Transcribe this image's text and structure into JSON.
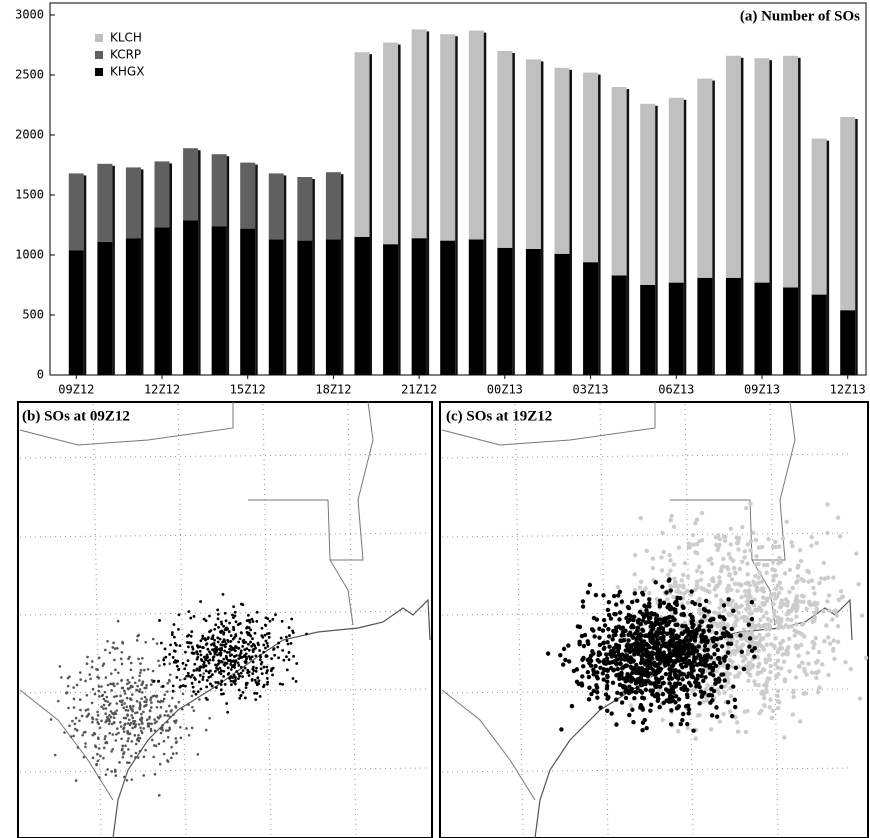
{
  "chart_data": {
    "type": "bar",
    "stacked": true,
    "title": "(a) Number of SOs",
    "categories": [
      "09Z12",
      null,
      null,
      "12Z12",
      null,
      null,
      "15Z12",
      null,
      null,
      "18Z12",
      null,
      null,
      "21Z12",
      null,
      null,
      "00Z13",
      null,
      null,
      "03Z13",
      null,
      null,
      "06Z13",
      null,
      null,
      "09Z13",
      null,
      null,
      "12Z13"
    ],
    "series": [
      {
        "name": "KHGX",
        "color": "#000000",
        "values": [
          1040,
          1110,
          1140,
          1230,
          1290,
          1240,
          1220,
          1130,
          1120,
          1130,
          1150,
          1090,
          1140,
          1120,
          1130,
          1060,
          1050,
          1010,
          940,
          830,
          750,
          770,
          810,
          810,
          770,
          730,
          670,
          540
        ]
      },
      {
        "name": "KCRP",
        "color": "#606060",
        "values": [
          640,
          650,
          590,
          550,
          600,
          600,
          550,
          550,
          530,
          560,
          0,
          0,
          0,
          0,
          0,
          0,
          0,
          0,
          0,
          0,
          0,
          0,
          0,
          0,
          0,
          0,
          0,
          0
        ]
      },
      {
        "name": "KLCH",
        "color": "#c0c0c0",
        "values": [
          0,
          0,
          0,
          0,
          0,
          0,
          0,
          0,
          0,
          0,
          1540,
          1680,
          1740,
          1720,
          1740,
          1640,
          1580,
          1550,
          1580,
          1570,
          1510,
          1540,
          1660,
          1850,
          1870,
          1930,
          1300,
          1610
        ]
      }
    ],
    "ylim": [
      0,
      3000
    ],
    "yticks": [
      0,
      500,
      1000,
      1500,
      2000,
      2500,
      3000
    ],
    "legend": "upper left"
  },
  "maps": [
    {
      "title": "(b) SOs at 09Z12"
    },
    {
      "title": "(c) SOs at 19Z12"
    }
  ]
}
